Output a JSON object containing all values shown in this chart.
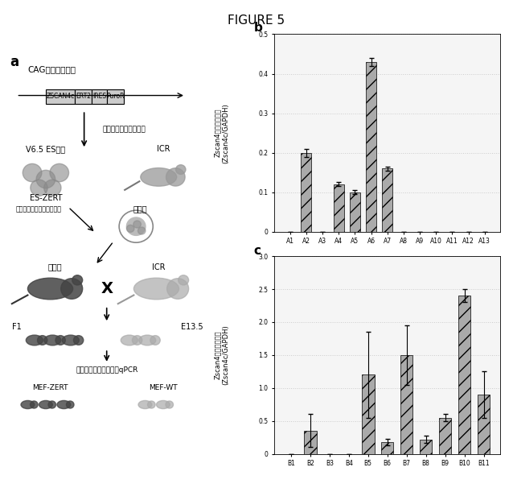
{
  "title": "FIGURE 5",
  "panel_b": {
    "categories": [
      "A1",
      "A2",
      "A3",
      "A4",
      "A5",
      "A6",
      "A7",
      "A8",
      "A9",
      "A10",
      "A11",
      "A12",
      "A13"
    ],
    "values": [
      0.0,
      0.2,
      0.0,
      0.12,
      0.1,
      0.43,
      0.16,
      0.0,
      0.0,
      0.0,
      0.0,
      0.0,
      0.0
    ],
    "errors": [
      0.0,
      0.01,
      0.0,
      0.005,
      0.005,
      0.01,
      0.005,
      0.0,
      0.0,
      0.0,
      0.0,
      0.0,
      0.0
    ],
    "ylim": [
      0,
      0.5
    ],
    "yticks": [
      0,
      0.1,
      0.2,
      0.3,
      0.4,
      0.5
    ],
    "ylabel": "Zscan4の発現レベル\n(Zscan4c/GAPDH)",
    "label": "b"
  },
  "panel_c": {
    "categories": [
      "B1",
      "B2",
      "B3",
      "B4",
      "B5",
      "B6",
      "B7",
      "B8",
      "B9",
      "B10",
      "B11"
    ],
    "values": [
      0.0,
      0.35,
      0.0,
      0.0,
      1.2,
      0.18,
      1.5,
      0.22,
      0.55,
      2.4,
      0.9
    ],
    "errors": [
      0.0,
      0.25,
      0.0,
      0.0,
      0.65,
      0.05,
      0.45,
      0.05,
      0.05,
      0.1,
      0.35
    ],
    "ylim": [
      0,
      3
    ],
    "yticks": [
      0,
      0.5,
      1.0,
      1.5,
      2.0,
      2.5,
      3.0
    ],
    "ylabel": "Zscan4の発現レベル\n(Zscan4c/GAPDH)",
    "label": "c"
  },
  "bar_color": "#aaaaaa",
  "bar_hatch": "//",
  "background_color": "#ffffff",
  "grid_color": "#cccccc",
  "diagram_texts": {
    "title_label": "a",
    "cag_promoter": "CAGプロモーター",
    "transfection": "トランスフェクション",
    "es_cells": "V6.5 ES細胞",
    "es_zert": "ES-ZERT",
    "icr": "ICR",
    "microinjection": "マイクロインジェクション",
    "blastocyst": "胧盤胞",
    "chimera": "キメラ",
    "f1": "F1",
    "e135": "E13.5",
    "genotyping": "遺伝子タイピング及びqPCR",
    "mef_zert": "MEF-ZERT",
    "mef_wt": "MEF-WT",
    "gene_boxes": [
      "ZSCAN4c",
      "ERT2",
      "IRES",
      "PuroR"
    ]
  }
}
